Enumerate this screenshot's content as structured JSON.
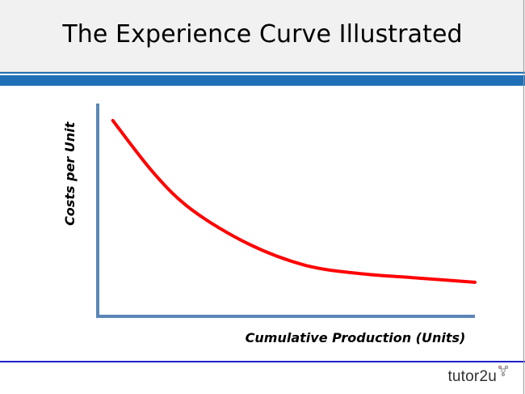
{
  "slide": {
    "title": "The Experience Curve Illustrated",
    "logo_text": "tutor2u"
  },
  "colors": {
    "band": "#1f6fb7",
    "footer_line": "#1e21c9",
    "axis": "#5b86b8",
    "curve": "#ff0000"
  },
  "chart_data": {
    "type": "line",
    "xlabel": "Cumulative Production (Units)",
    "ylabel": "Costs per Unit",
    "ticks": "none",
    "series": [
      {
        "shape": "decreasing convex curve",
        "x": [
          0.04,
          0.15,
          0.25,
          0.4,
          0.55,
          0.7,
          0.85,
          1.0
        ],
        "y": [
          0.92,
          0.67,
          0.5,
          0.34,
          0.24,
          0.2,
          0.18,
          0.16
        ]
      }
    ]
  }
}
